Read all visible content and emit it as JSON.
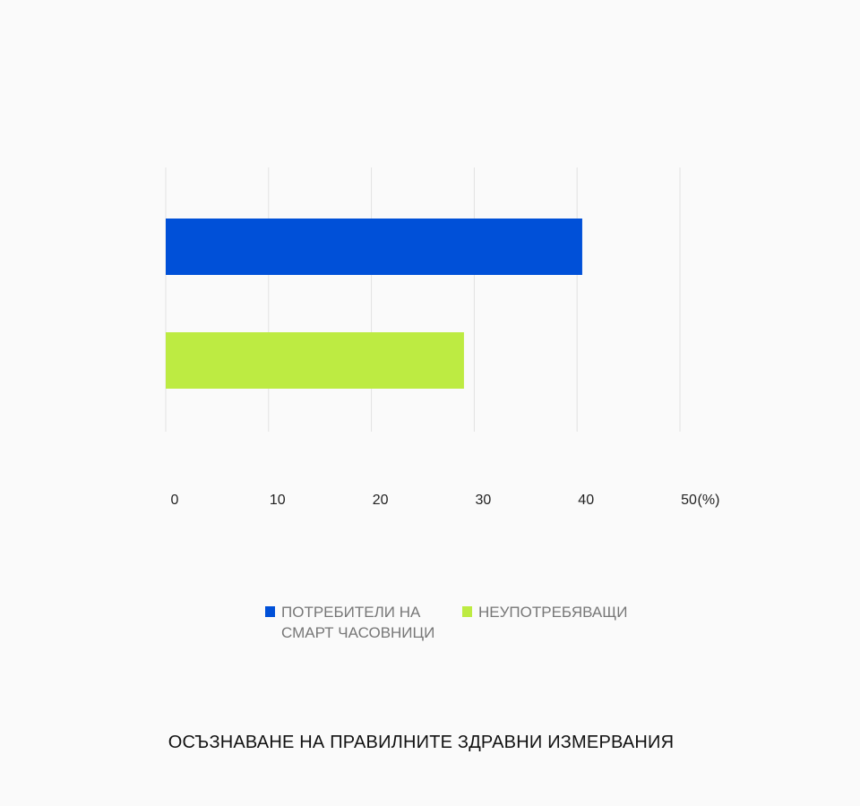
{
  "chart_data": {
    "type": "bar",
    "orientation": "horizontal",
    "title": "ОСЪЗНАВАНЕ НА ПРАВИЛНИТЕ ЗДРАВНИ ИЗМЕРВАНИЯ",
    "categories": [
      "ПОТРЕБИТЕЛИ НА СМАРТ ЧАСОВНИЦИ",
      "НЕУПОТРЕБЯВАЩИ"
    ],
    "values": [
      40.5,
      29
    ],
    "colors": [
      "#0050d8",
      "#bdeb42"
    ],
    "xlabel": "(%)",
    "xlim": [
      0,
      50
    ],
    "xticks": [
      0,
      10,
      20,
      30,
      40,
      50
    ],
    "grid": true
  }
}
